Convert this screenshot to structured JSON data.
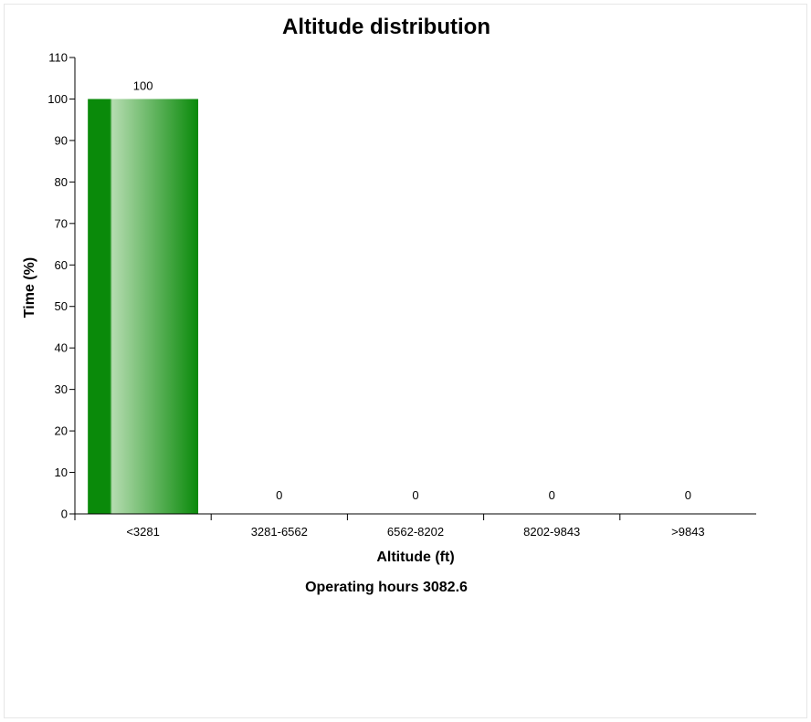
{
  "chart_data": {
    "type": "bar",
    "title": "Altitude distribution",
    "xlabel": "Altitude (ft)",
    "ylabel": "Time (%)",
    "categories": [
      "<3281",
      "3281-6562",
      "6562-8202",
      "8202-9843",
      ">9843"
    ],
    "values": [
      100,
      0,
      0,
      0,
      0
    ],
    "data_labels": [
      "100",
      "0",
      "0",
      "0",
      "0"
    ],
    "ylim": [
      0,
      110
    ],
    "yticks": [
      0,
      10,
      20,
      30,
      40,
      50,
      60,
      70,
      80,
      90,
      100,
      110
    ],
    "grid": false,
    "legend": "none",
    "bar_color": "#0a8a0a",
    "bar_highlight": "#b5dcb0",
    "footer": "Operating hours 3082.6"
  }
}
